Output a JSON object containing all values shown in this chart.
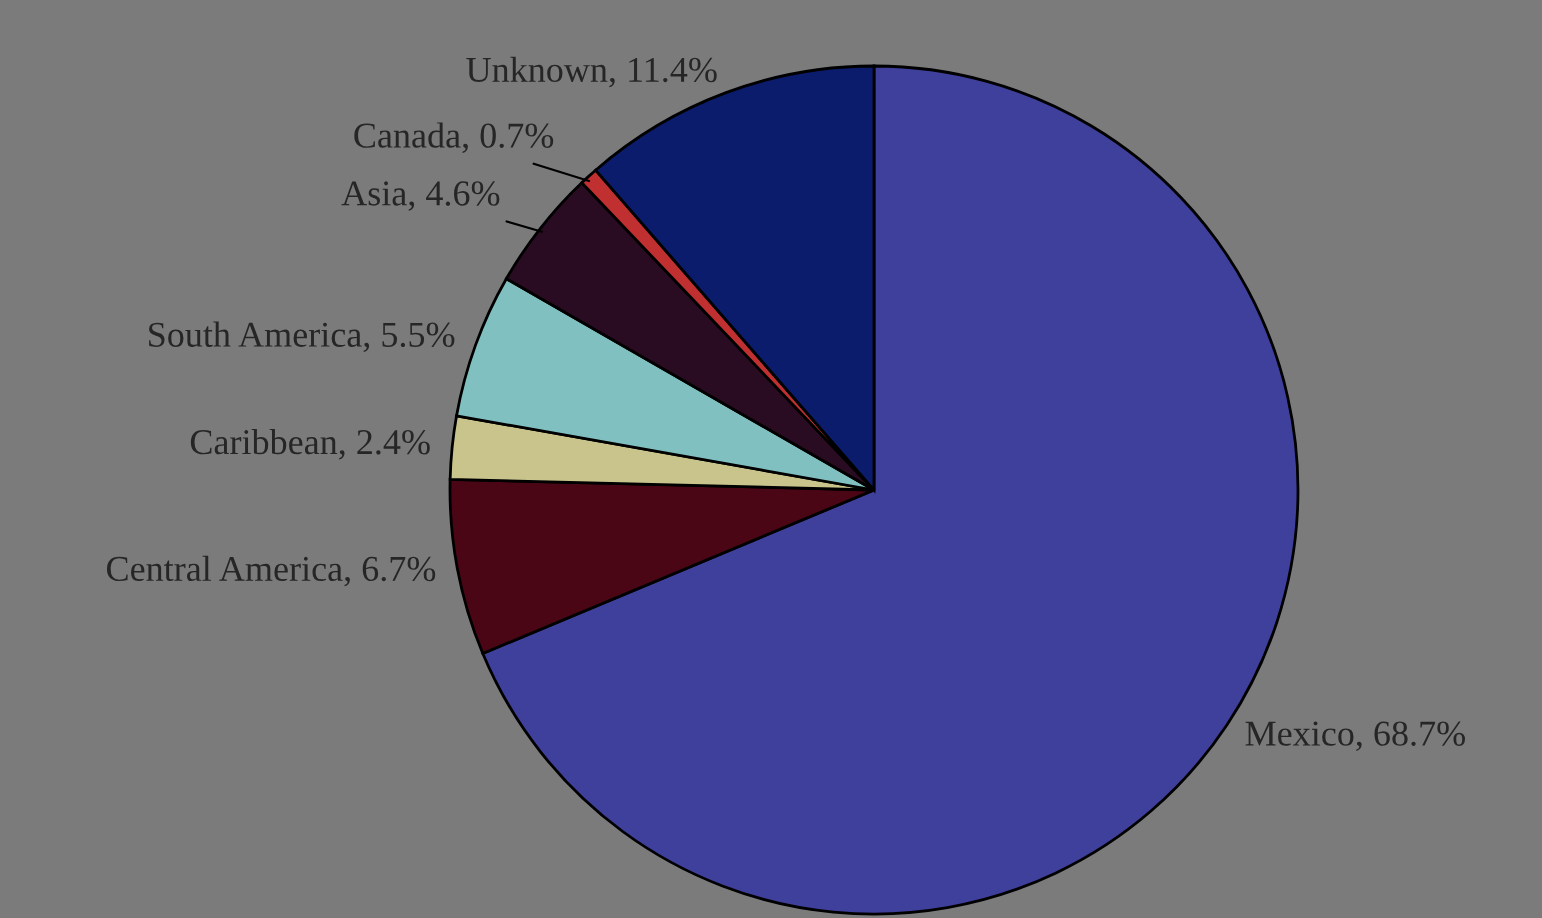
{
  "chart_data": {
    "type": "pie",
    "categories": [
      "Mexico",
      "Central America",
      "Caribbean",
      "South America",
      "Asia",
      "Canada",
      "Unknown"
    ],
    "values": [
      68.7,
      6.7,
      2.4,
      5.5,
      4.6,
      0.7,
      11.4
    ],
    "value_labels": [
      "68.7%",
      "6.7%",
      "2.4%",
      "5.5%",
      "4.6%",
      "0.7%",
      "11.4%"
    ],
    "colors": [
      "#3f3f9c",
      "#4a0614",
      "#c8c48c",
      "#80c0c0",
      "#2a0c22",
      "#c03030",
      "#0c1c6c"
    ]
  }
}
